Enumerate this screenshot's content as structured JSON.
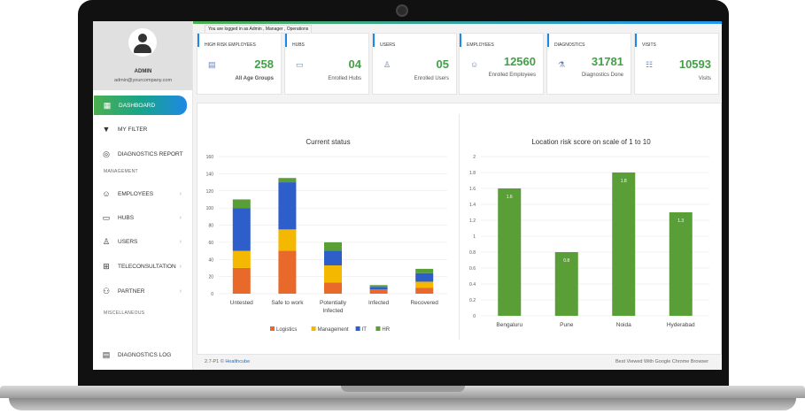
{
  "user": {
    "name": "ADMIN",
    "email": "admin@yourcompany.com"
  },
  "header": {
    "logged_in_text": "You are logged in as Admin , Manager , Operations"
  },
  "sidebar": {
    "items": [
      {
        "label": "DASHBOARD",
        "icon": "dashboard-icon",
        "active": true
      },
      {
        "label": "MY FILTER",
        "icon": "filter-icon"
      },
      {
        "label": "DIAGNOSTICS REPORT",
        "icon": "fingerprint-icon"
      },
      {
        "label": "EMPLOYEES",
        "icon": "employees-icon",
        "chevron": "›"
      },
      {
        "label": "HUBS",
        "icon": "hubs-icon",
        "chevron": "›"
      },
      {
        "label": "USERS",
        "icon": "users-icon",
        "chevron": "›"
      },
      {
        "label": "TELECONSULTATION",
        "icon": "teleconsultation-icon",
        "chevron": "›"
      },
      {
        "label": "PARTNER",
        "icon": "partner-icon",
        "chevron": "›"
      },
      {
        "label": "DIAGNOSTICS LOG",
        "icon": "log-icon"
      }
    ],
    "sections": {
      "management": "MANAGEMENT",
      "miscellaneous": "MISCELLANEOUS"
    }
  },
  "cards": [
    {
      "title": "HIGH RISK EMPLOYEES",
      "value": "258",
      "sub": "All Age Groups",
      "icon": "clipboard-icon"
    },
    {
      "title": "HUBS",
      "value": "04",
      "sub": "Enrolled Hubs",
      "icon": "monitor-icon"
    },
    {
      "title": "USERS",
      "value": "05",
      "sub": "Enrolled Users",
      "icon": "user-icon"
    },
    {
      "title": "EMPLOYEES",
      "value": "12560",
      "sub": "Enrolled Employees",
      "icon": "doctor-icon"
    },
    {
      "title": "DIAGNOSTICS",
      "value": "31781",
      "sub": "Diagnostics Done",
      "icon": "microscope-icon"
    },
    {
      "title": "VISITS",
      "value": "10593",
      "sub": "Visits",
      "icon": "checklist-icon"
    }
  ],
  "footer": {
    "version": "2.7-P1 ©",
    "brand": "Healthcube",
    "browser_note": "Best Viewed With Google Chrome Browser"
  },
  "chart_data": [
    {
      "type": "bar",
      "stacked": true,
      "title": "Current status",
      "categories": [
        "Untested",
        "Safe to work",
        "Potentially Infected",
        "Infected",
        "Recovered"
      ],
      "ylim": [
        0,
        160
      ],
      "yticks": [
        0,
        20,
        40,
        60,
        80,
        100,
        120,
        140,
        160
      ],
      "grid": true,
      "legend": "bottom",
      "series": [
        {
          "name": "Logistics",
          "color": "#e8692a",
          "values": [
            30,
            50,
            13,
            5,
            7
          ]
        },
        {
          "name": "Management",
          "color": "#f5b800",
          "values": [
            20,
            25,
            20,
            0,
            7
          ]
        },
        {
          "name": "IT",
          "color": "#2e5ec9",
          "values": [
            50,
            55,
            17,
            3,
            10
          ]
        },
        {
          "name": "HR",
          "color": "#5a9e37",
          "values": [
            10,
            5,
            10,
            2,
            5
          ]
        }
      ]
    },
    {
      "type": "bar",
      "title": "Location risk score on scale of 1 to 10",
      "categories": [
        "Bengaluru",
        "Pune",
        "Noida",
        "Hyderabad"
      ],
      "values": [
        1.6,
        0.8,
        1.8,
        1.3
      ],
      "value_labels": [
        "1.6",
        "0.8",
        "1.8",
        "1.3"
      ],
      "ylim": [
        0,
        2
      ],
      "yticks": [
        0,
        0.2,
        0.4,
        0.6,
        0.8,
        1,
        1.2,
        1.4,
        1.6,
        1.8,
        2
      ],
      "color": "#5a9e37",
      "grid": true
    }
  ]
}
